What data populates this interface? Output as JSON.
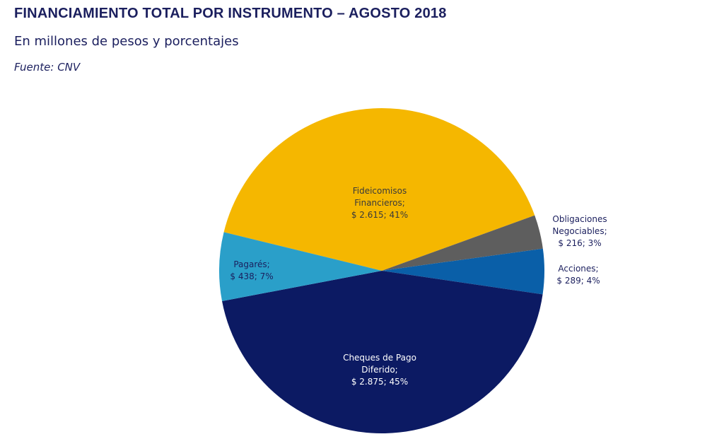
{
  "header": {
    "title": "FINANCIAMIENTO TOTAL POR INSTRUMENTO – AGOSTO 2018",
    "subtitle": "En millones de pesos y porcentajes",
    "source": "Fuente: CNV"
  },
  "chart_data": {
    "type": "pie",
    "title": "FINANCIAMIENTO TOTAL POR INSTRUMENTO – AGOSTO 2018",
    "subtitle": "En millones de pesos y porcentajes",
    "source": "Fuente: CNV",
    "slices": [
      {
        "name": "Fideicomisos Financieros",
        "value": 2615,
        "percent": 41,
        "color": "#f5b700",
        "label_lines": [
          "Fideicomisos",
          "Financieros;",
          "$ 2.615; 41%"
        ],
        "label_color": "#3a3a3a"
      },
      {
        "name": "Obligaciones Negociables",
        "value": 216,
        "percent": 3,
        "color": "#5e5e5e",
        "label_lines": [
          "Obligaciones",
          "Negociables;",
          "$ 216; 3%"
        ],
        "label_color": "#1b1f5e"
      },
      {
        "name": "Acciones",
        "value": 289,
        "percent": 4,
        "color": "#0a5fa8",
        "label_lines": [
          "Acciones;",
          "$ 289; 4%"
        ],
        "label_color": "#1b1f5e"
      },
      {
        "name": "Cheques de Pago Diferido",
        "value": 2875,
        "percent": 45,
        "color": "#0c1a63",
        "label_lines": [
          "Cheques de Pago",
          "Diferido;",
          "$ 2.875; 45%"
        ],
        "label_color": "#ffffff"
      },
      {
        "name": "Pagarés",
        "value": 438,
        "percent": 7,
        "color": "#2a9fc9",
        "label_lines": [
          "Pagarés;",
          "$ 438; 7%"
        ],
        "label_color": "#1b1f5e"
      }
    ],
    "legend": "none"
  }
}
